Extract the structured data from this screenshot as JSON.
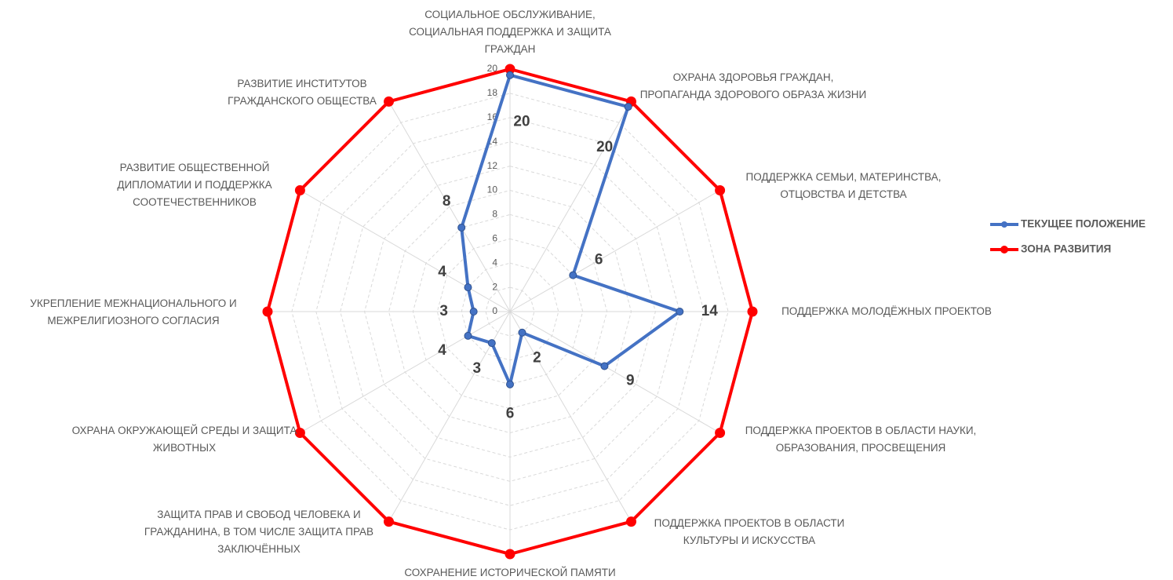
{
  "chart_data": {
    "type": "radar",
    "categories": [
      "СОЦИАЛЬНОЕ ОБСЛУЖИВАНИЕ, СОЦИАЛЬНАЯ ПОДДЕРЖКА И ЗАЩИТА ГРАЖДАН",
      "ОХРАНА ЗДОРОВЬЯ ГРАЖДАН, ПРОПАГАНДА ЗДОРОВОГО ОБРАЗА ЖИЗНИ",
      "ПОДДЕРЖКА СЕМЬИ, МАТЕРИНСТВА, ОТЦОВСТВА И ДЕТСТВА",
      "ПОДДЕРЖКА МОЛОДЁЖНЫХ ПРОЕКТОВ",
      "ПОДДЕРЖКА ПРОЕКТОВ В ОБЛАСТИ НАУКИ, ОБРАЗОВАНИЯ, ПРОСВЕЩЕНИЯ",
      "ПОДДЕРЖКА ПРОЕКТОВ В ОБЛАСТИ КУЛЬТУРЫ И ИСКУССТВА",
      "СОХРАНЕНИЕ ИСТОРИЧЕСКОЙ ПАМЯТИ",
      "ЗАЩИТА ПРАВ И СВОБОД ЧЕЛОВЕКА И ГРАЖДАНИНА, В ТОМ ЧИСЛЕ ЗАЩИТА ПРАВ ЗАКЛЮЧЁННЫХ",
      "ОХРАНА ОКРУЖАЮЩЕЙ СРЕДЫ И ЗАЩИТА ЖИВОТНЫХ",
      "УКРЕПЛЕНИЕ МЕЖНАЦИОНАЛЬНОГО И МЕЖРЕЛИГИОЗНОГО СОГЛАСИЯ",
      "РАЗВИТИЕ ОБЩЕСТВЕННОЙ ДИПЛОМАТИИ И ПОДДЕРЖКА СООТЕЧЕСТВЕННИКОВ",
      "РАЗВИТИЕ ИНСТИТУТОВ ГРАЖДАНСКОГО ОБЩЕСТВА"
    ],
    "series": [
      {
        "name": "ТЕКУЩЕЕ ПОЛОЖЕНИЕ",
        "color": "#4472c4",
        "values": [
          19.5,
          19.5,
          6,
          14,
          9,
          2,
          6,
          3,
          4,
          3,
          4,
          8
        ],
        "value_labels": [
          "20",
          "20",
          "6",
          "14",
          "9",
          "2",
          "6",
          "3",
          "4",
          "3",
          "4",
          "8"
        ]
      },
      {
        "name": "ЗОНА РАЗВИТИЯ",
        "color": "#ff0000",
        "values": [
          20,
          20,
          20,
          20,
          20,
          20,
          20,
          20,
          20,
          20,
          20,
          20
        ]
      }
    ],
    "ylim": [
      0,
      20
    ],
    "yticks": [
      0,
      2,
      4,
      6,
      8,
      10,
      12,
      14,
      16,
      18,
      20
    ],
    "grid": true,
    "legend": "right"
  }
}
